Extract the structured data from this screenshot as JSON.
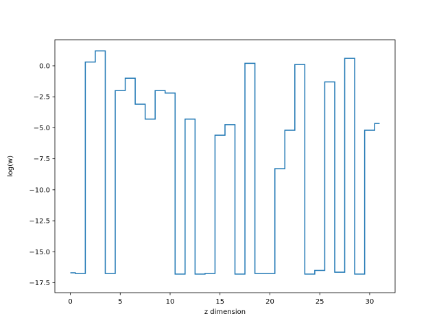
{
  "chart_data": {
    "type": "line",
    "drawstyle": "steps-mid",
    "title": "",
    "xlabel": "z dimension",
    "ylabel": "log(w)",
    "xlim": [
      -1.55,
      32.55
    ],
    "ylim": [
      -18.3,
      2.1
    ],
    "xticks": [
      0,
      5,
      10,
      15,
      20,
      25,
      30
    ],
    "xtick_labels": [
      "0",
      "5",
      "10",
      "15",
      "20",
      "25",
      "30"
    ],
    "yticks": [
      -17.5,
      -15.0,
      -12.5,
      -10.0,
      -7.5,
      -5.0,
      -2.5,
      0.0
    ],
    "ytick_labels": [
      "−17.5",
      "−15.0",
      "−12.5",
      "−10.0",
      "−7.5",
      "−5.0",
      "−2.5",
      "0.0"
    ],
    "grid": false,
    "color": "#1f77b4",
    "series": [
      {
        "x": [
          0,
          1,
          2,
          3,
          4,
          5,
          6,
          7,
          8,
          9,
          10,
          11,
          12,
          13,
          14,
          15,
          16,
          17,
          18,
          19,
          20,
          21,
          22,
          23,
          24,
          25,
          26,
          27,
          28,
          29,
          30,
          31
        ],
        "y": [
          -16.7,
          -16.75,
          0.3,
          1.2,
          -16.75,
          -2.0,
          -1.0,
          -3.1,
          -4.3,
          -2.0,
          -2.2,
          -16.8,
          -4.3,
          -16.8,
          -16.75,
          -5.6,
          -4.75,
          -16.8,
          0.2,
          -16.75,
          -16.75,
          -8.3,
          -5.2,
          0.1,
          -16.8,
          -16.5,
          -1.3,
          -16.65,
          0.6,
          -16.8,
          -5.2,
          -4.65
        ]
      }
    ]
  }
}
